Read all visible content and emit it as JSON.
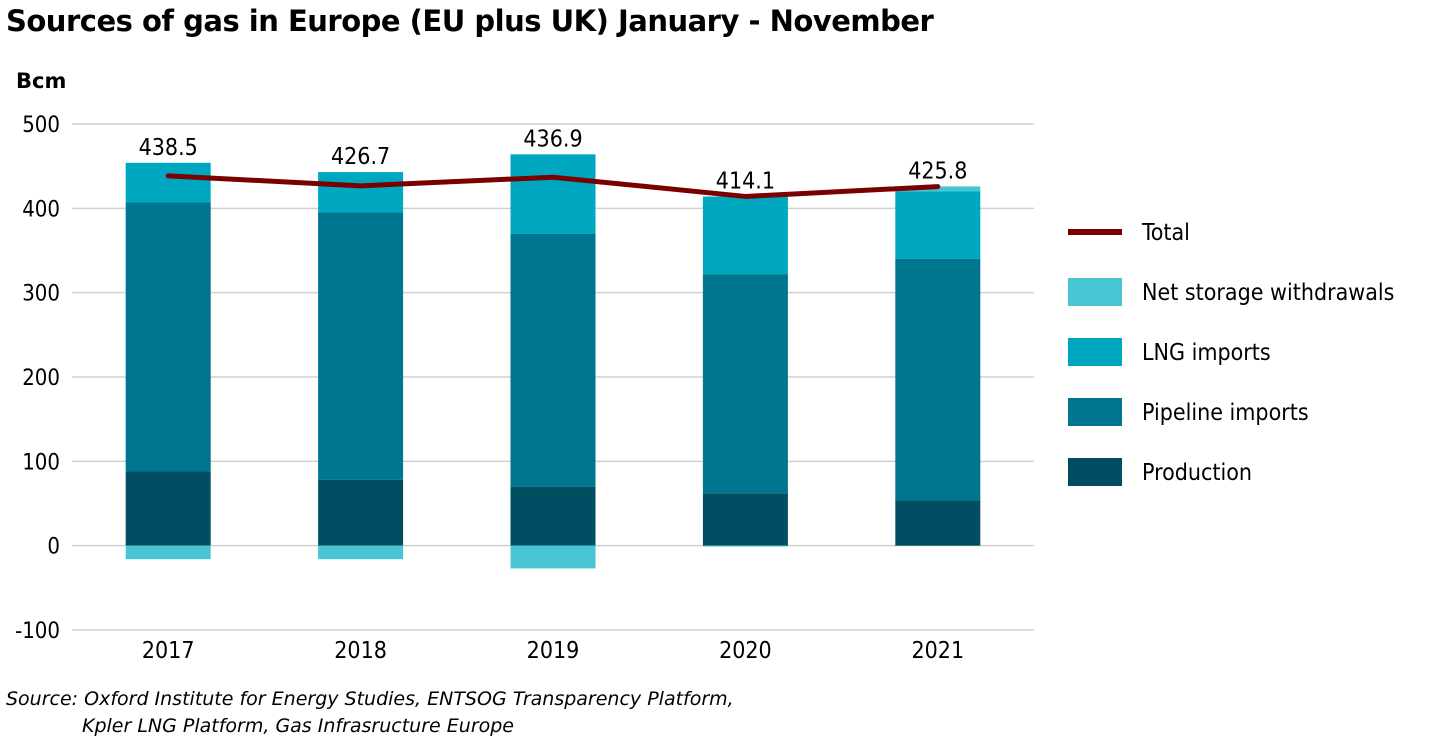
{
  "chart_data": {
    "type": "bar",
    "title": "Sources of gas in Europe (EU plus UK) January - November",
    "ylabel": "Bcm",
    "ylim": [
      -100,
      500
    ],
    "yticks": [
      500,
      400,
      300,
      200,
      100,
      0,
      -100
    ],
    "grid": true,
    "legend_position": "right",
    "categories": [
      "2017",
      "2018",
      "2019",
      "2020",
      "2021"
    ],
    "series": [
      {
        "name": "Production",
        "values": [
          88,
          78,
          70,
          62,
          54
        ],
        "color": "#004e62"
      },
      {
        "name": "Pipeline imports",
        "values": [
          319,
          317,
          300,
          260,
          286
        ],
        "color": "#00758f"
      },
      {
        "name": "LNG imports",
        "values": [
          47,
          48,
          94,
          92,
          80
        ],
        "color": "#00a7c0"
      },
      {
        "name": "Net storage withdrawals",
        "values": [
          -16,
          -16,
          -27,
          -1,
          6
        ],
        "color": "#47c5d2"
      }
    ],
    "line": {
      "name": "Total",
      "values": [
        438.5,
        426.7,
        436.9,
        414.1,
        425.8
      ],
      "color": "#7a0000"
    }
  },
  "source": {
    "line1": "Source: Oxford Institute for Energy Studies, ENTSOG Transparency Platform,",
    "line2": "Kpler LNG Platform, Gas Infrasructure Europe"
  }
}
